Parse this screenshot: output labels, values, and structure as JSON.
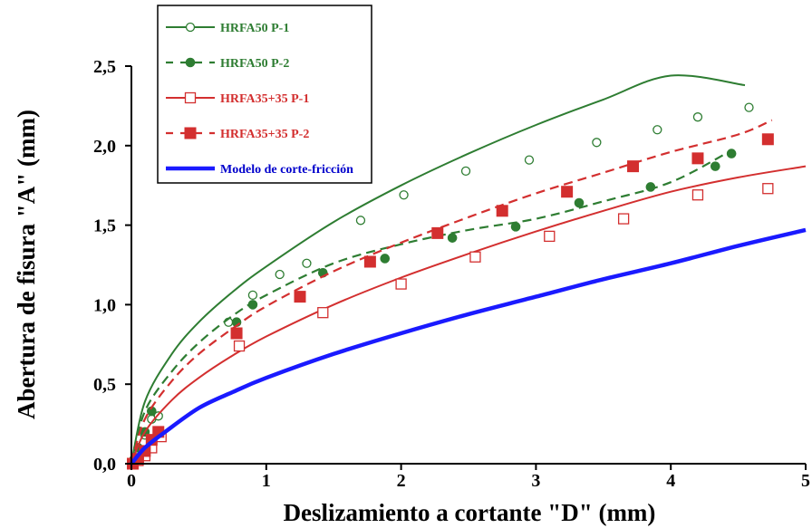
{
  "chart_data": {
    "type": "scatter",
    "xlabel": "Deslizamiento a cortante \"D\" (mm)",
    "ylabel": "Abertura de fisura \"A\" (mm)",
    "xlim": [
      0,
      5
    ],
    "ylim": [
      0,
      2.5
    ],
    "x_ticks": [
      "0",
      "1",
      "2",
      "3",
      "4",
      "5"
    ],
    "y_ticks": [
      "0,0",
      "0,5",
      "1,0",
      "1,5",
      "2,0",
      "2,5"
    ],
    "grid": false,
    "legend_position": "top-left",
    "series": [
      {
        "name": "HRFA50 P-1",
        "color": "#2e7d32",
        "marker": "open-circle",
        "line": "solid",
        "points": [
          [
            0.02,
            0.03
          ],
          [
            0.05,
            0.08
          ],
          [
            0.1,
            0.18
          ],
          [
            0.15,
            0.28
          ],
          [
            0.2,
            0.3
          ],
          [
            0.72,
            0.89
          ],
          [
            0.9,
            1.06
          ],
          [
            1.1,
            1.19
          ],
          [
            1.3,
            1.26
          ],
          [
            1.7,
            1.53
          ],
          [
            2.02,
            1.69
          ],
          [
            2.48,
            1.84
          ],
          [
            2.95,
            1.91
          ],
          [
            3.45,
            2.02
          ],
          [
            3.9,
            2.1
          ],
          [
            4.2,
            2.18
          ],
          [
            4.58,
            2.24
          ]
        ],
        "curve": [
          [
            0,
            0
          ],
          [
            0.1,
            0.39
          ],
          [
            0.3,
            0.69
          ],
          [
            0.5,
            0.89
          ],
          [
            0.75,
            1.08
          ],
          [
            1,
            1.24
          ],
          [
            1.5,
            1.52
          ],
          [
            2,
            1.75
          ],
          [
            2.5,
            1.95
          ],
          [
            3,
            2.13
          ],
          [
            3.5,
            2.29
          ],
          [
            4,
            2.44
          ],
          [
            4.55,
            2.38
          ]
        ]
      },
      {
        "name": "HRFA50 P-2",
        "color": "#2e7d32",
        "marker": "filled-circle",
        "line": "dashed",
        "points": [
          [
            0.02,
            0.02
          ],
          [
            0.05,
            0.1
          ],
          [
            0.1,
            0.2
          ],
          [
            0.15,
            0.33
          ],
          [
            0.78,
            0.89
          ],
          [
            0.9,
            1.0
          ],
          [
            1.42,
            1.2
          ],
          [
            1.88,
            1.29
          ],
          [
            2.38,
            1.42
          ],
          [
            2.85,
            1.49
          ],
          [
            3.32,
            1.64
          ],
          [
            3.85,
            1.74
          ],
          [
            4.33,
            1.87
          ],
          [
            4.45,
            1.95
          ]
        ],
        "curve": [
          [
            0,
            0
          ],
          [
            0.1,
            0.33
          ],
          [
            0.3,
            0.58
          ],
          [
            0.5,
            0.76
          ],
          [
            0.75,
            0.93
          ],
          [
            1,
            1.06
          ],
          [
            1.5,
            1.26
          ],
          [
            2,
            1.38
          ],
          [
            2.5,
            1.47
          ],
          [
            3,
            1.54
          ],
          [
            3.5,
            1.65
          ],
          [
            4,
            1.77
          ],
          [
            4.45,
            1.97
          ]
        ]
      },
      {
        "name": "HRFA35+35 P-1",
        "color": "#d32f2f",
        "marker": "open-square",
        "line": "solid",
        "points": [
          [
            0.01,
            0.0
          ],
          [
            0.05,
            0.02
          ],
          [
            0.1,
            0.05
          ],
          [
            0.15,
            0.1
          ],
          [
            0.22,
            0.17
          ],
          [
            0.8,
            0.74
          ],
          [
            1.42,
            0.95
          ],
          [
            2.0,
            1.13
          ],
          [
            2.55,
            1.3
          ],
          [
            3.1,
            1.43
          ],
          [
            3.65,
            1.54
          ],
          [
            4.2,
            1.69
          ],
          [
            4.72,
            1.73
          ]
        ],
        "curve": [
          [
            0,
            0
          ],
          [
            0.1,
            0.2
          ],
          [
            0.3,
            0.4
          ],
          [
            0.5,
            0.54
          ],
          [
            0.75,
            0.68
          ],
          [
            1,
            0.8
          ],
          [
            1.5,
            1.0
          ],
          [
            2,
            1.17
          ],
          [
            2.5,
            1.32
          ],
          [
            3,
            1.46
          ],
          [
            3.5,
            1.59
          ],
          [
            4,
            1.71
          ],
          [
            4.5,
            1.8
          ],
          [
            5,
            1.87
          ]
        ]
      },
      {
        "name": "HRFA35+35 P-2",
        "color": "#d32f2f",
        "marker": "filled-square",
        "line": "dashed",
        "points": [
          [
            0.01,
            0.0
          ],
          [
            0.05,
            0.03
          ],
          [
            0.1,
            0.08
          ],
          [
            0.15,
            0.15
          ],
          [
            0.2,
            0.2
          ],
          [
            0.78,
            0.82
          ],
          [
            1.25,
            1.05
          ],
          [
            1.77,
            1.27
          ],
          [
            2.27,
            1.45
          ],
          [
            2.75,
            1.59
          ],
          [
            3.23,
            1.71
          ],
          [
            3.72,
            1.87
          ],
          [
            4.2,
            1.92
          ],
          [
            4.72,
            2.04
          ]
        ],
        "curve": [
          [
            0,
            0
          ],
          [
            0.1,
            0.28
          ],
          [
            0.3,
            0.52
          ],
          [
            0.5,
            0.69
          ],
          [
            0.75,
            0.85
          ],
          [
            1,
            0.99
          ],
          [
            1.5,
            1.21
          ],
          [
            2,
            1.39
          ],
          [
            2.5,
            1.55
          ],
          [
            3,
            1.7
          ],
          [
            3.5,
            1.83
          ],
          [
            4,
            1.96
          ],
          [
            4.5,
            2.07
          ],
          [
            4.75,
            2.16
          ]
        ]
      },
      {
        "name": "Modelo de corte-fricción",
        "color": "#1a1aff",
        "marker": "none",
        "line": "thick",
        "curve": [
          [
            0,
            0
          ],
          [
            0.1,
            0.1
          ],
          [
            0.25,
            0.2
          ],
          [
            0.5,
            0.35
          ],
          [
            0.75,
            0.45
          ],
          [
            1,
            0.54
          ],
          [
            1.5,
            0.69
          ],
          [
            2,
            0.82
          ],
          [
            2.5,
            0.94
          ],
          [
            3,
            1.05
          ],
          [
            3.5,
            1.16
          ],
          [
            4,
            1.26
          ],
          [
            4.5,
            1.37
          ],
          [
            5,
            1.47
          ]
        ]
      }
    ]
  }
}
